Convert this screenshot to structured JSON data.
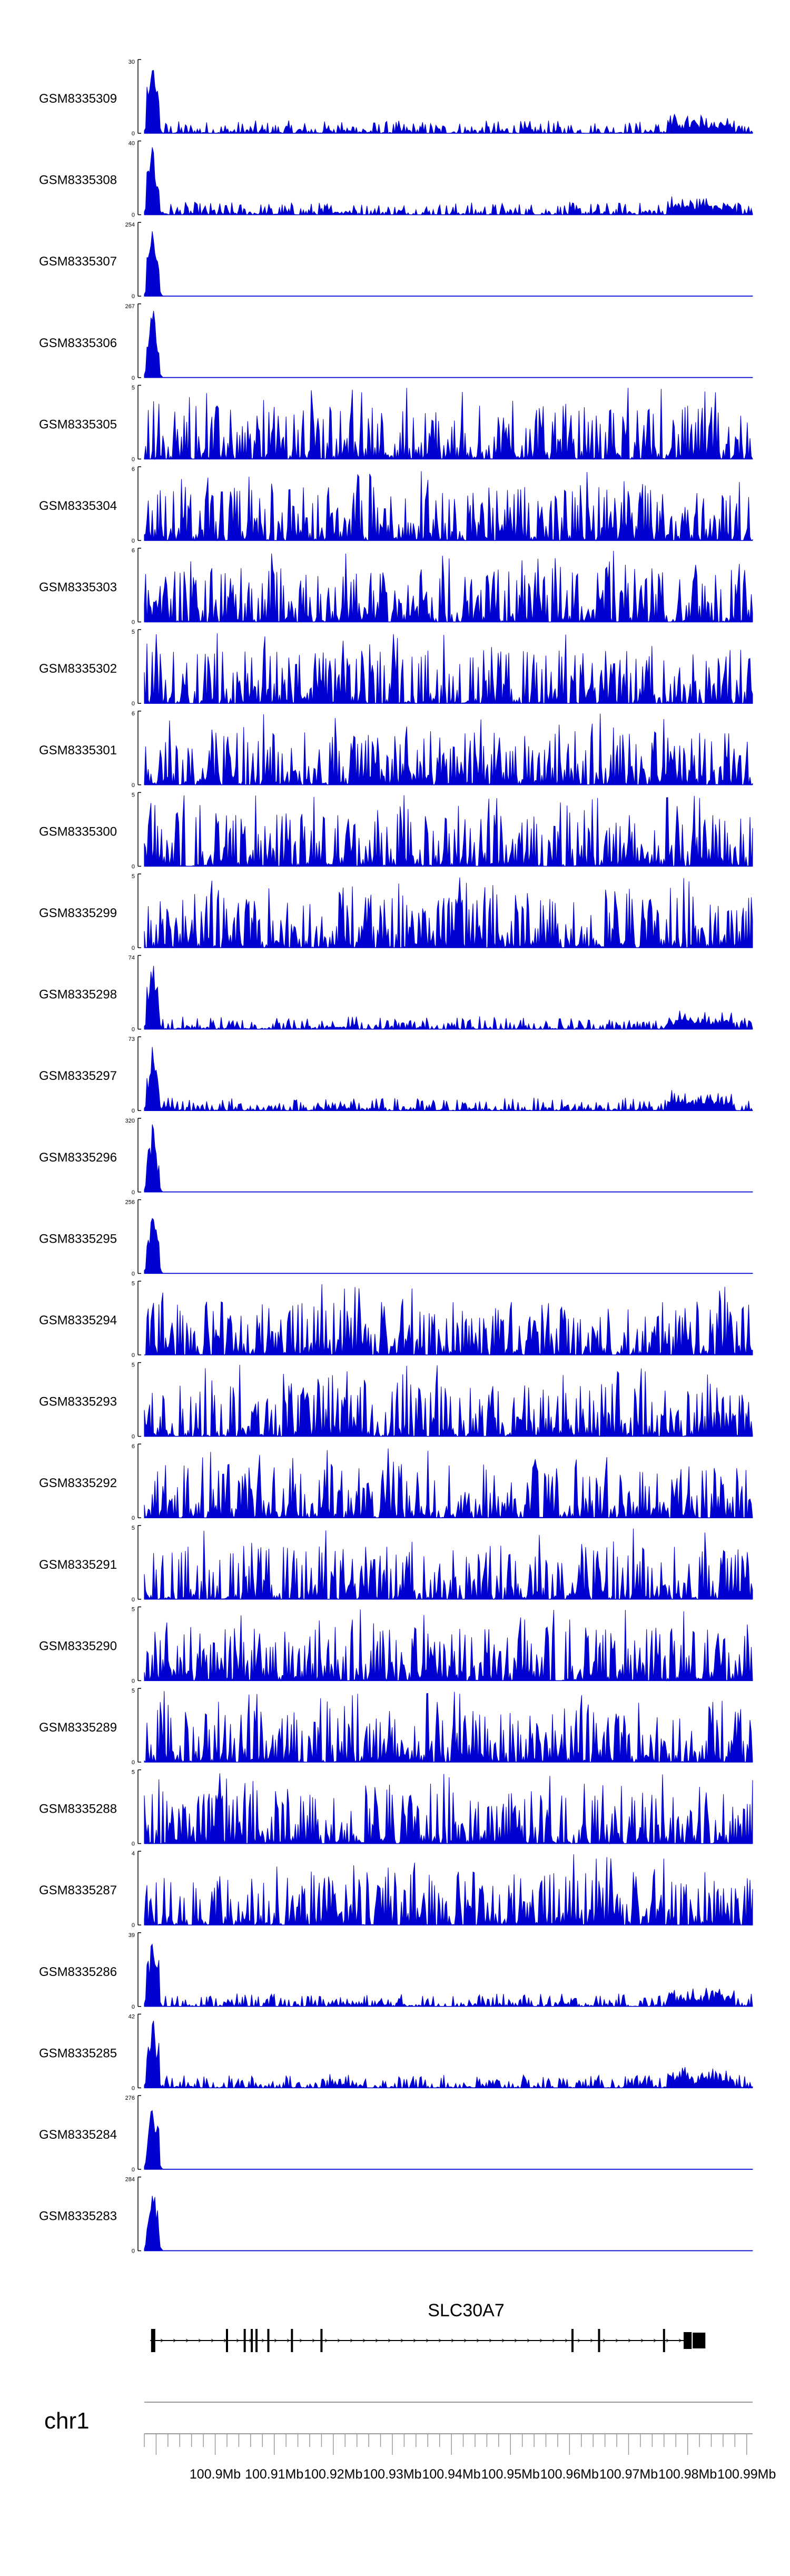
{
  "chart_data": {
    "type": "area",
    "description_units": "genomic coverage tracks",
    "color": "#0000d0",
    "x_unit": "Mb",
    "xlim": [
      100.888,
      100.991
    ],
    "ticks": [
      "100.9Mb",
      "100.91Mb",
      "100.92Mb",
      "100.93Mb",
      "100.94Mb",
      "100.95Mb",
      "100.96Mb",
      "100.97Mb",
      "100.98Mb",
      "100.99Mb"
    ],
    "tick_values": [
      100.9,
      100.91,
      100.92,
      100.93,
      100.94,
      100.95,
      100.96,
      100.97,
      100.98,
      100.99
    ],
    "chromosome": "chr1",
    "gene": {
      "name": "SLC30A7",
      "start": 100.889,
      "end": 100.9795,
      "utr_end": 100.9805,
      "coding_end": 100.983,
      "exons": [
        100.8895,
        100.902,
        100.905,
        100.9062,
        100.907,
        100.909,
        100.913,
        100.918,
        100.9605,
        100.965,
        100.976
      ]
    },
    "tracks": [
      {
        "name": "GSM8335309",
        "ymax": "30",
        "ymin": "0",
        "profile": "promoter_low"
      },
      {
        "name": "GSM8335308",
        "ymax": "40",
        "ymin": "0",
        "profile": "promoter_low"
      },
      {
        "name": "GSM8335307",
        "ymax": "254",
        "ymin": "0",
        "profile": "promoter_only"
      },
      {
        "name": "GSM8335306",
        "ymax": "267",
        "ymin": "0",
        "profile": "promoter_only"
      },
      {
        "name": "GSM8335305",
        "ymax": "5",
        "ymin": "0",
        "profile": "noise"
      },
      {
        "name": "GSM8335304",
        "ymax": "6",
        "ymin": "0",
        "profile": "noise"
      },
      {
        "name": "GSM8335303",
        "ymax": "6",
        "ymin": "0",
        "profile": "noise"
      },
      {
        "name": "GSM8335302",
        "ymax": "5",
        "ymin": "0",
        "profile": "noise"
      },
      {
        "name": "GSM8335301",
        "ymax": "6",
        "ymin": "0",
        "profile": "noise"
      },
      {
        "name": "GSM8335300",
        "ymax": "5",
        "ymin": "0",
        "profile": "noise"
      },
      {
        "name": "GSM8335299",
        "ymax": "5",
        "ymin": "0",
        "profile": "noise"
      },
      {
        "name": "GSM8335298",
        "ymax": "74",
        "ymin": "0",
        "profile": "promoter_low"
      },
      {
        "name": "GSM8335297",
        "ymax": "73",
        "ymin": "0",
        "profile": "promoter_low"
      },
      {
        "name": "GSM8335296",
        "ymax": "320",
        "ymin": "0",
        "profile": "promoter_only"
      },
      {
        "name": "GSM8335295",
        "ymax": "256",
        "ymin": "0",
        "profile": "promoter_only"
      },
      {
        "name": "GSM8335294",
        "ymax": "5",
        "ymin": "0",
        "profile": "noise"
      },
      {
        "name": "GSM8335293",
        "ymax": "5",
        "ymin": "0",
        "profile": "noise"
      },
      {
        "name": "GSM8335292",
        "ymax": "6",
        "ymin": "0",
        "profile": "noise"
      },
      {
        "name": "GSM8335291",
        "ymax": "5",
        "ymin": "0",
        "profile": "noise"
      },
      {
        "name": "GSM8335290",
        "ymax": "5",
        "ymin": "0",
        "profile": "noise"
      },
      {
        "name": "GSM8335289",
        "ymax": "5",
        "ymin": "0",
        "profile": "noise"
      },
      {
        "name": "GSM8335288",
        "ymax": "5",
        "ymin": "0",
        "profile": "noise"
      },
      {
        "name": "GSM8335287",
        "ymax": "4",
        "ymin": "0",
        "profile": "noise"
      },
      {
        "name": "GSM8335286",
        "ymax": "39",
        "ymin": "0",
        "profile": "promoter_low"
      },
      {
        "name": "GSM8335285",
        "ymax": "42",
        "ymin": "0",
        "profile": "promoter_low"
      },
      {
        "name": "GSM8335284",
        "ymax": "276",
        "ymin": "0",
        "profile": "promoter_only"
      },
      {
        "name": "GSM8335283",
        "ymax": "284",
        "ymin": "0",
        "profile": "promoter_only"
      }
    ]
  }
}
